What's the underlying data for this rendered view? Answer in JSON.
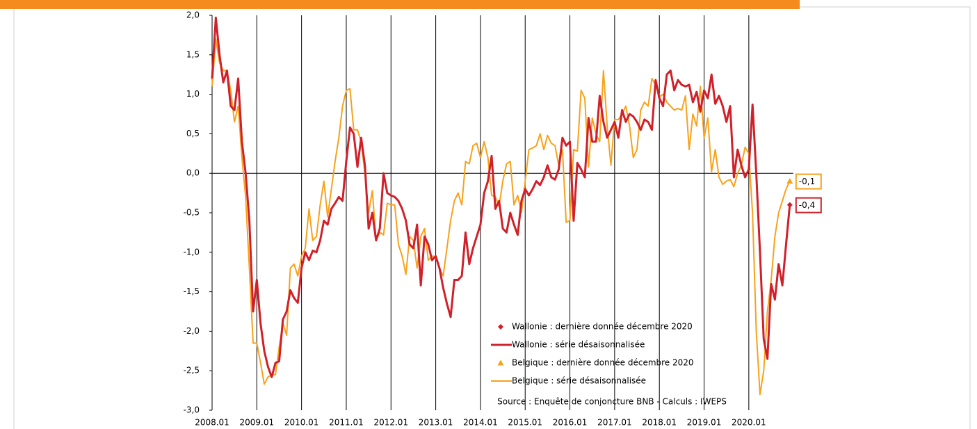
{
  "chart_data": {
    "type": "line",
    "source": "Source : Enquête de conjoncture BNB - Calculs : IWEPS",
    "categories": [
      "2008.01",
      null,
      null,
      null,
      null,
      null,
      null,
      null,
      null,
      null,
      null,
      null,
      "2009.01",
      null,
      null,
      null,
      null,
      null,
      null,
      null,
      null,
      null,
      null,
      null,
      "2010.01",
      null,
      null,
      null,
      null,
      null,
      null,
      null,
      null,
      null,
      null,
      null,
      "2011.01",
      null,
      null,
      null,
      null,
      null,
      null,
      null,
      null,
      null,
      null,
      null,
      "2012.01",
      null,
      null,
      null,
      null,
      null,
      null,
      null,
      null,
      null,
      null,
      null,
      "2013.01",
      null,
      null,
      null,
      null,
      null,
      null,
      null,
      null,
      null,
      null,
      null,
      "2014.01",
      null,
      null,
      null,
      null,
      null,
      null,
      null,
      null,
      null,
      null,
      null,
      "2015.01",
      null,
      null,
      null,
      null,
      null,
      null,
      null,
      null,
      null,
      null,
      null,
      "2016.01",
      null,
      null,
      null,
      null,
      null,
      null,
      null,
      null,
      null,
      null,
      null,
      "2017.01",
      null,
      null,
      null,
      null,
      null,
      null,
      null,
      null,
      null,
      null,
      null,
      "2018.01",
      null,
      null,
      null,
      null,
      null,
      null,
      null,
      null,
      null,
      null,
      null,
      "2019.01",
      null,
      null,
      null,
      null,
      null,
      null,
      null,
      null,
      null,
      null,
      null,
      "2020.01",
      null,
      null,
      null,
      null,
      null,
      null,
      null,
      null,
      null,
      null,
      null
    ],
    "series": [
      {
        "name": "Wallonie : série désaisonnalisée",
        "marker_name": "Wallonie : dernière donnée décembre 2020",
        "marker": "diamond",
        "color": "#d0202a",
        "last_value_label": "-0,4",
        "values": [
          1.2,
          1.97,
          1.5,
          1.15,
          1.3,
          0.85,
          0.8,
          1.2,
          0.4,
          0.0,
          -0.6,
          -1.75,
          -1.35,
          -1.9,
          -2.25,
          -2.45,
          -2.58,
          -2.4,
          -2.38,
          -1.85,
          -1.75,
          -1.48,
          -1.58,
          -1.64,
          -1.2,
          -1.0,
          -1.1,
          -0.98,
          -1.0,
          -0.85,
          -0.6,
          -0.65,
          -0.45,
          -0.38,
          -0.3,
          -0.35,
          0.15,
          0.58,
          0.5,
          0.08,
          0.45,
          0.1,
          -0.7,
          -0.5,
          -0.85,
          -0.7,
          0.0,
          -0.25,
          -0.28,
          -0.3,
          -0.35,
          -0.45,
          -0.6,
          -0.9,
          -0.95,
          -0.65,
          -1.42,
          -0.8,
          -0.9,
          -1.1,
          -1.05,
          -1.2,
          -1.45,
          -1.65,
          -1.82,
          -1.35,
          -1.35,
          -1.3,
          -0.75,
          -1.15,
          -0.95,
          -0.8,
          -0.65,
          -0.25,
          -0.1,
          0.22,
          -0.45,
          -0.35,
          -0.7,
          -0.75,
          -0.5,
          -0.65,
          -0.78,
          -0.35,
          -0.2,
          -0.28,
          -0.2,
          -0.1,
          -0.15,
          -0.05,
          0.1,
          -0.05,
          -0.08,
          0.05,
          0.45,
          0.35,
          0.4,
          -0.6,
          0.13,
          0.05,
          -0.05,
          0.7,
          0.4,
          0.4,
          0.98,
          0.65,
          0.45,
          0.55,
          0.65,
          0.45,
          0.8,
          0.65,
          0.75,
          0.72,
          0.65,
          0.55,
          0.68,
          0.65,
          0.55,
          1.18,
          0.95,
          0.85,
          1.25,
          1.3,
          1.05,
          1.18,
          1.12,
          1.1,
          1.12,
          0.9,
          1.03,
          0.78,
          1.05,
          0.95,
          1.25,
          0.88,
          0.98,
          0.85,
          0.65,
          0.85,
          -0.05,
          0.3,
          0.1,
          -0.05,
          0.05,
          0.87,
          0.0,
          -1.0,
          -2.1,
          -2.35,
          -1.4,
          -1.6,
          -1.15,
          -1.42,
          -0.9,
          -0.4
        ]
      },
      {
        "name": "Belgique : série désaisonnalisée",
        "marker_name": "Belgique : dernière donnée décembre 2020",
        "marker": "triangle",
        "color": "#f7a21b",
        "last_value_label": "-0,1",
        "values": [
          1.1,
          1.7,
          1.4,
          1.3,
          1.3,
          1.05,
          0.65,
          0.85,
          0.2,
          -0.3,
          -1.2,
          -2.15,
          -2.15,
          -2.4,
          -2.67,
          -2.58,
          -2.55,
          -2.55,
          -2.2,
          -1.9,
          -2.05,
          -1.2,
          -1.15,
          -1.3,
          -1.05,
          -0.95,
          -0.45,
          -0.85,
          -0.8,
          -0.4,
          -0.1,
          -0.55,
          -0.2,
          0.15,
          0.45,
          0.85,
          1.05,
          1.07,
          0.55,
          0.55,
          0.4,
          0.0,
          -0.5,
          -0.22,
          -0.85,
          -0.75,
          -0.78,
          -0.38,
          -0.4,
          -0.4,
          -0.9,
          -1.05,
          -1.28,
          -0.8,
          -0.85,
          -1.2,
          -0.8,
          -0.7,
          -1.1,
          -1.05,
          -1.05,
          -1.2,
          -1.3,
          -0.95,
          -0.6,
          -0.35,
          -0.25,
          -0.4,
          0.15,
          0.12,
          0.35,
          0.38,
          0.2,
          0.4,
          0.2,
          -0.28,
          -0.3,
          -0.42,
          -0.1,
          0.12,
          0.15,
          -0.4,
          -0.28,
          -0.5,
          -0.1,
          0.3,
          0.32,
          0.35,
          0.5,
          0.3,
          0.48,
          0.38,
          0.35,
          0.1,
          0.3,
          -0.62,
          -0.6,
          0.3,
          0.28,
          1.05,
          0.95,
          0.08,
          0.7,
          0.5,
          0.4,
          1.3,
          0.6,
          0.1,
          0.68,
          0.68,
          0.75,
          0.85,
          0.6,
          0.2,
          0.3,
          0.8,
          0.9,
          0.85,
          1.2,
          1.12,
          0.97,
          1.0,
          0.9,
          0.85,
          0.8,
          0.82,
          0.8,
          0.98,
          0.3,
          0.75,
          0.6,
          1.1,
          0.45,
          0.7,
          0.02,
          0.3,
          -0.05,
          -0.14,
          -0.1,
          -0.08,
          -0.17,
          0.0,
          0.1,
          0.33,
          0.25,
          -0.5,
          -2.0,
          -2.8,
          -2.5,
          -1.75,
          -1.35,
          -0.8,
          -0.5,
          -0.35,
          -0.2,
          -0.1
        ]
      }
    ],
    "ylim": [
      -3,
      2
    ],
    "yticks": [
      {
        "value": 2,
        "label": "2,0"
      },
      {
        "value": 1.5,
        "label": "1,5"
      },
      {
        "value": 1,
        "label": "1,0"
      },
      {
        "value": 0.5,
        "label": "0,5"
      },
      {
        "value": 0,
        "label": "0,0"
      },
      {
        "value": -0.5,
        "label": "-0,5"
      },
      {
        "value": -1,
        "label": "-1,0"
      },
      {
        "value": -1.5,
        "label": "-1,5"
      },
      {
        "value": -2,
        "label": "-2,0"
      },
      {
        "value": -2.5,
        "label": "-2,5"
      },
      {
        "value": -3,
        "label": "-3,0"
      }
    ],
    "grid": true
  }
}
